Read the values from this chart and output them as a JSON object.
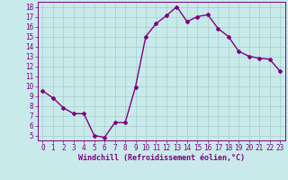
{
  "x": [
    0,
    1,
    2,
    3,
    4,
    5,
    6,
    7,
    8,
    9,
    10,
    11,
    12,
    13,
    14,
    15,
    16,
    17,
    18,
    19,
    20,
    21,
    22,
    23
  ],
  "y": [
    9.5,
    8.8,
    7.8,
    7.2,
    7.2,
    5.0,
    4.8,
    6.3,
    6.3,
    9.9,
    15.0,
    16.3,
    17.1,
    18.0,
    16.5,
    17.0,
    17.2,
    15.8,
    15.0,
    13.5,
    13.0,
    12.8,
    12.7,
    11.5
  ],
  "line_color": "#800080",
  "marker": "D",
  "marker_size": 2,
  "linewidth": 1.0,
  "bg_color": "#c8eaea",
  "grid_color": "#a8cccc",
  "xlabel": "Windchill (Refroidissement éolien,°C)",
  "xlim": [
    -0.5,
    23.5
  ],
  "ylim": [
    4.5,
    18.5
  ],
  "yticks": [
    5,
    6,
    7,
    8,
    9,
    10,
    11,
    12,
    13,
    14,
    15,
    16,
    17,
    18
  ],
  "xticks": [
    0,
    1,
    2,
    3,
    4,
    5,
    6,
    7,
    8,
    9,
    10,
    11,
    12,
    13,
    14,
    15,
    16,
    17,
    18,
    19,
    20,
    21,
    22,
    23
  ],
  "tick_label_fontsize": 5.5,
  "xlabel_fontsize": 6.0
}
